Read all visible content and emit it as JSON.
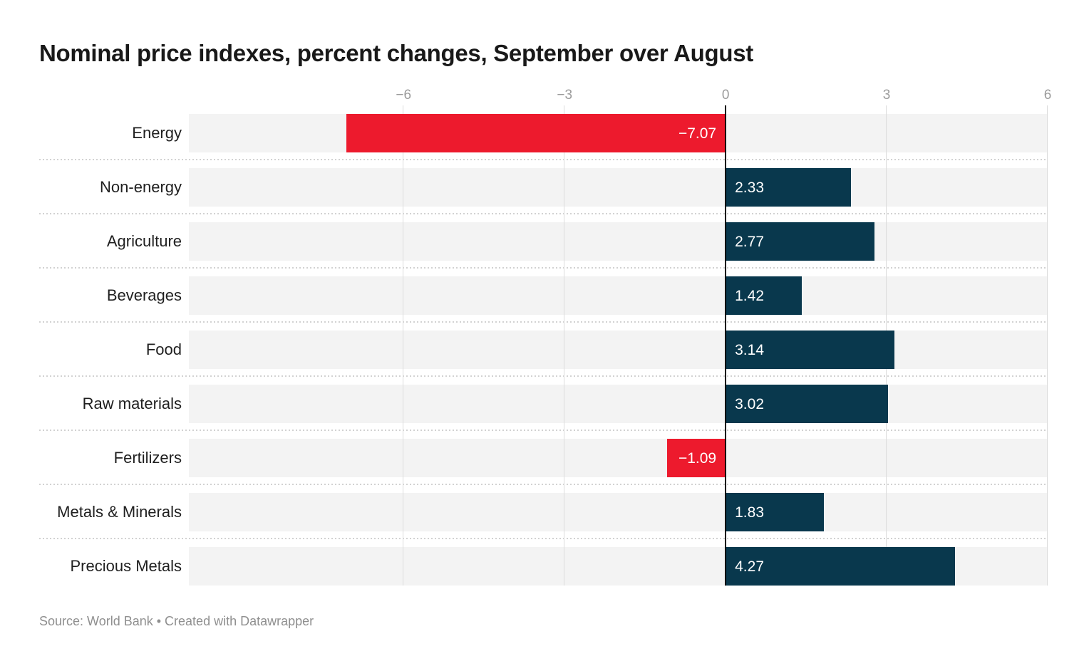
{
  "title": "Nominal price indexes, percent changes, September over August",
  "footer": "Source: World Bank • Created with Datawrapper",
  "colors": {
    "positive_bar": "#09384d",
    "negative_bar": "#ed1a2d",
    "row_band": "#f3f3f3",
    "gridline": "#dcdcdc",
    "zero_line": "#000000",
    "axis_text": "#9b9b9b",
    "value_text": "#ffffff"
  },
  "chart_data": {
    "type": "bar",
    "orientation": "horizontal",
    "title": "Nominal price indexes, percent changes, September over August",
    "xlabel": "",
    "ylabel": "",
    "categories": [
      "Energy",
      "Non-energy",
      "Agriculture",
      "Beverages",
      "Food",
      "Raw materials",
      "Fertilizers",
      "Metals & Minerals",
      "Precious Metals"
    ],
    "values": [
      -7.07,
      2.33,
      2.77,
      1.42,
      3.14,
      3.02,
      -1.09,
      1.83,
      4.27
    ],
    "value_labels": [
      "−7.07",
      "2.33",
      "2.77",
      "1.42",
      "3.14",
      "3.02",
      "−1.09",
      "1.83",
      "4.27"
    ],
    "axis": {
      "xlim": [
        -10,
        6
      ],
      "ticks": [
        -6,
        -3,
        0,
        3,
        6
      ],
      "tick_labels": [
        "−6",
        "−3",
        "0",
        "3",
        "6"
      ],
      "grid": true,
      "zero_baseline": true
    },
    "legend": "none",
    "source": "World Bank",
    "tool": "Datawrapper"
  }
}
